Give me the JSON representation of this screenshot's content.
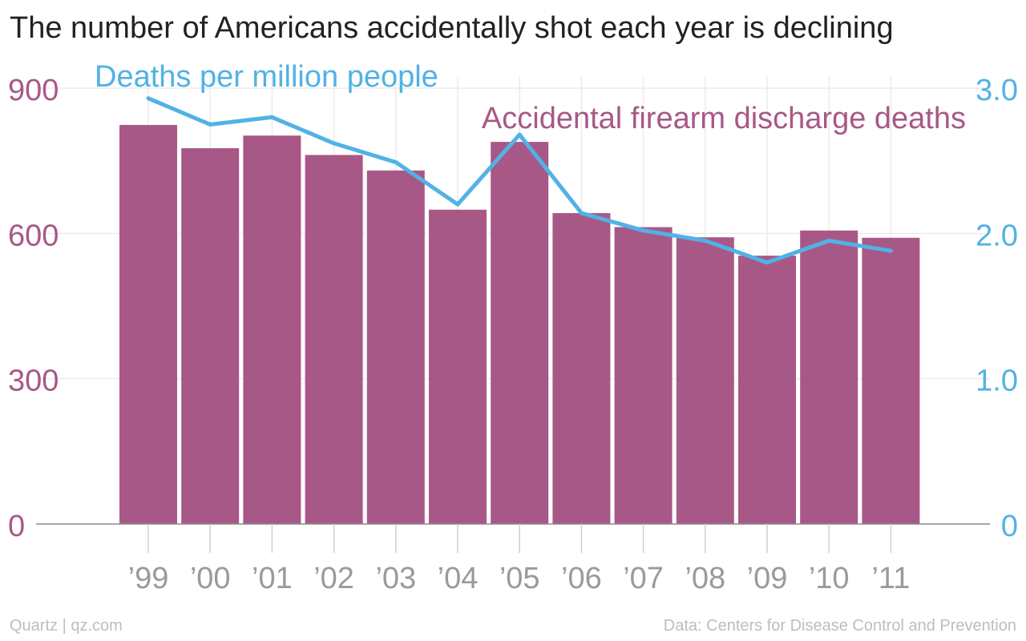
{
  "chart_data": {
    "type": "bar",
    "title": "The number of Americans accidentally shot each year is declining",
    "categories": [
      "’99",
      "’00",
      "’01",
      "’02",
      "’03",
      "’04",
      "’05",
      "’06",
      "’07",
      "’08",
      "’09",
      "’10",
      "’11"
    ],
    "series": [
      {
        "name": "Accidental firearm discharge deaths",
        "type": "bar",
        "axis": "left",
        "color": "#a85886",
        "values": [
          824,
          776,
          802,
          762,
          730,
          649,
          789,
          642,
          613,
          592,
          554,
          606,
          591
        ]
      },
      {
        "name": "Deaths per million people",
        "type": "line",
        "axis": "right",
        "color": "#51b2e5",
        "values": [
          2.93,
          2.75,
          2.8,
          2.62,
          2.49,
          2.2,
          2.68,
          2.14,
          2.02,
          1.95,
          1.8,
          1.95,
          1.88
        ]
      }
    ],
    "y_left": {
      "range": [
        0,
        900
      ],
      "ticks": [
        "0",
        "300",
        "600",
        "900"
      ],
      "color": "#a85886"
    },
    "y_right": {
      "range": [
        0,
        3.0
      ],
      "ticks": [
        "0",
        "1.0",
        "2.0",
        "3.0"
      ],
      "color": "#51b2e5"
    },
    "grid": true
  },
  "footer": {
    "source": "Quartz | qz.com",
    "data_credit": "Data: Centers for Disease Control and Prevention"
  }
}
